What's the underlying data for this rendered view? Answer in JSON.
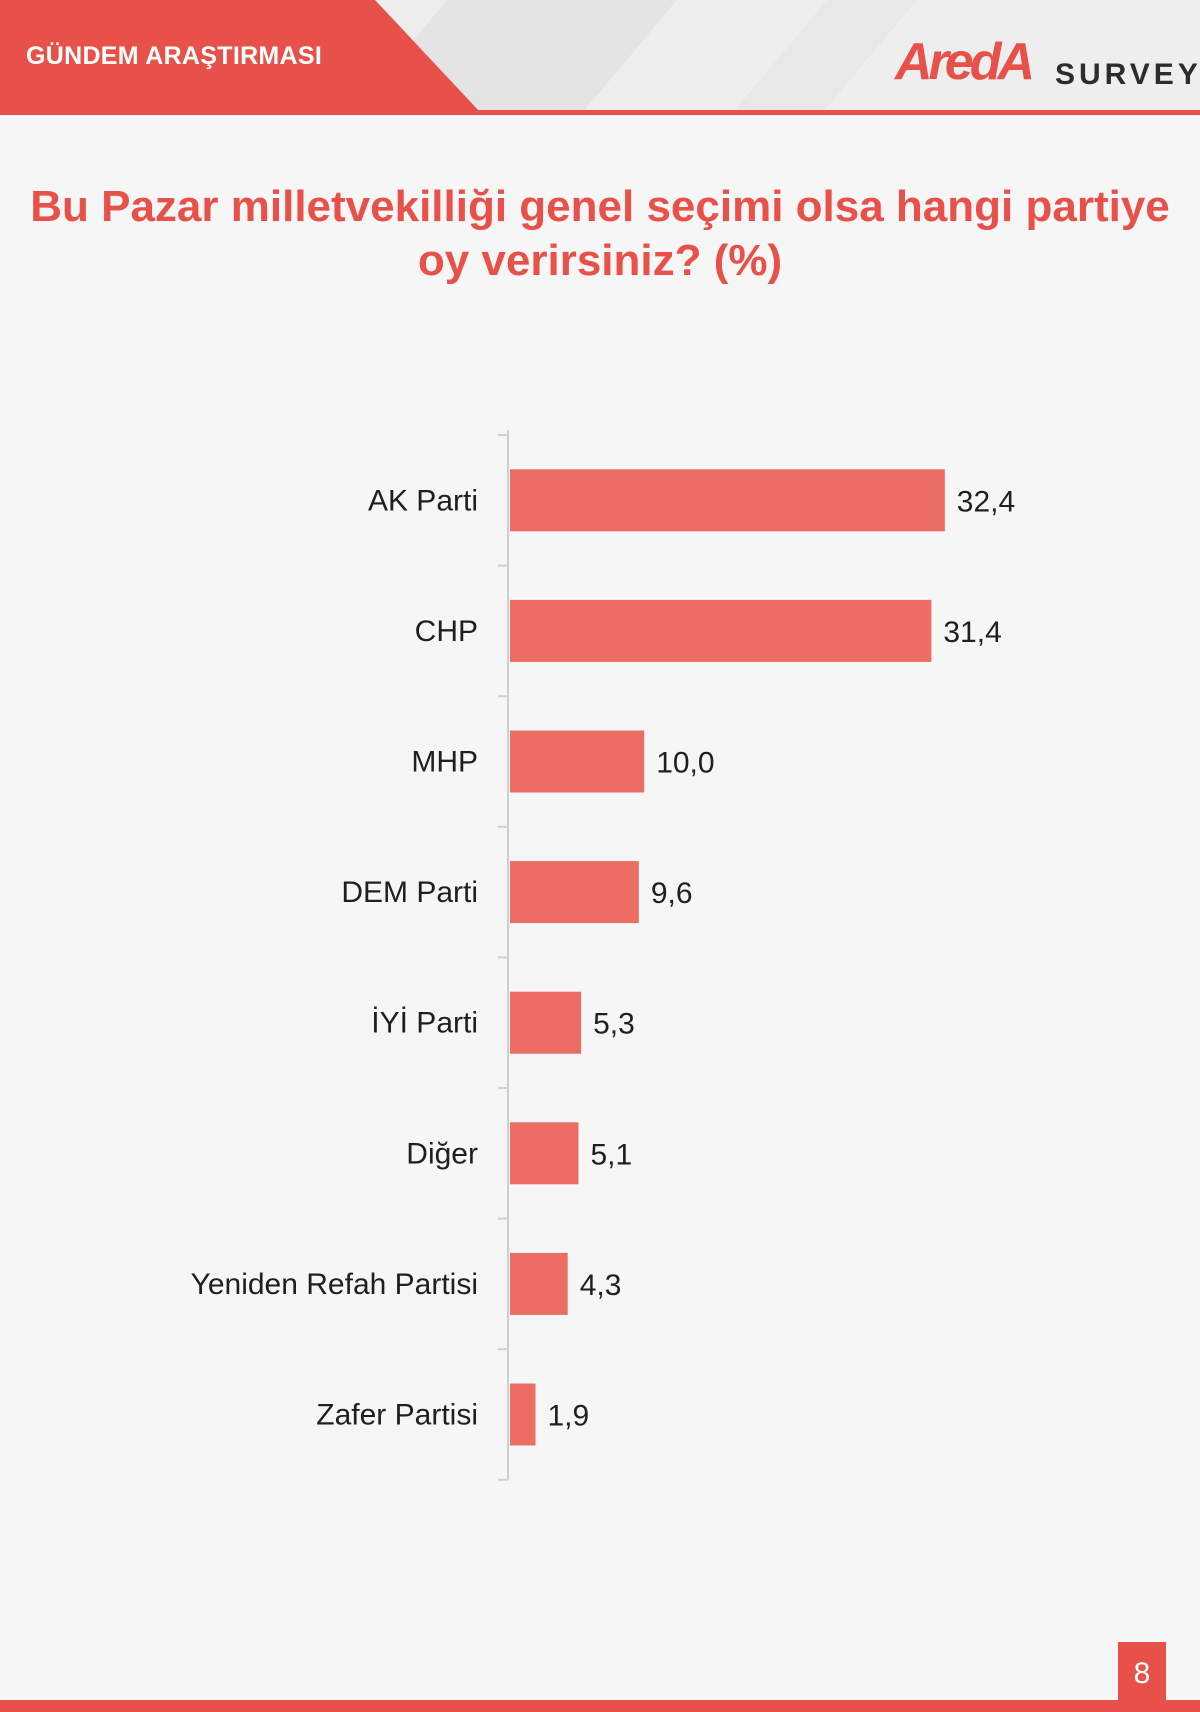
{
  "header": {
    "section_label": "GÜNDEM ARAŞTIRMASI",
    "brand_word": "AredA",
    "brand_survey": "SURVEY",
    "accent": "#e8514a"
  },
  "title": "Bu Pazar milletvekilliği genel seçimi olsa hangi partiye oy verirsiniz? (%)",
  "page_number": "8",
  "chart_data": {
    "type": "bar",
    "orientation": "horizontal",
    "title": "Bu Pazar milletvekilliği genel seçimi olsa hangi partiye oy verirsiniz? (%)",
    "categories": [
      "AK Parti",
      "CHP",
      "MHP",
      "DEM Parti",
      "İYİ Parti",
      "Diğer",
      "Yeniden Refah Partisi",
      "Zafer Partisi"
    ],
    "values": [
      32.4,
      31.4,
      10.0,
      9.6,
      5.3,
      5.1,
      4.3,
      1.9
    ],
    "value_labels": [
      "32,4",
      "31,4",
      "10,0",
      "9,6",
      "5,3",
      "5,1",
      "4,3",
      "1,9"
    ],
    "xlim": [
      0,
      35
    ],
    "bar_color": "#ec6d63",
    "grid": false,
    "legend": "none"
  }
}
